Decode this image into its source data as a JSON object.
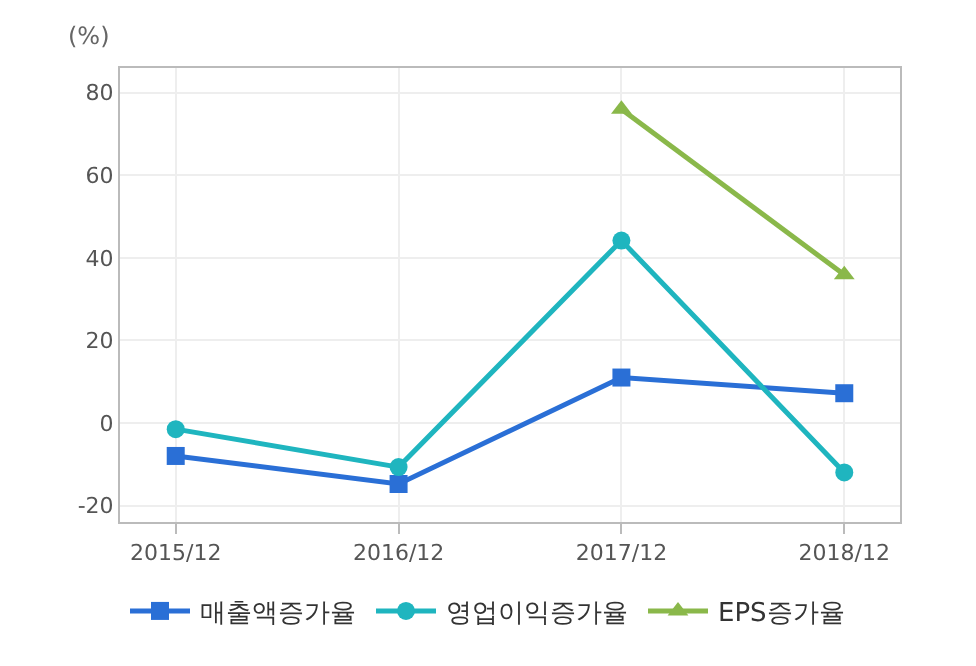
{
  "chart_data": {
    "type": "line",
    "ylabel": "(%)",
    "categories": [
      "2015/12",
      "2016/12",
      "2017/12",
      "2018/12"
    ],
    "series": [
      {
        "name": "매출액증가율",
        "color": "#2a6fd6",
        "marker": "square",
        "values": [
          -8,
          -14.8,
          11,
          7.2
        ]
      },
      {
        "name": "영업이익증가율",
        "color": "#1fb5bf",
        "marker": "circle",
        "values": [
          -1.5,
          -10.7,
          44.2,
          -12
        ]
      },
      {
        "name": "EPS증가율",
        "color": "#8ab84a",
        "marker": "triangle",
        "values": [
          null,
          null,
          76,
          35.9
        ]
      }
    ],
    "ylim": [
      -24,
      86
    ],
    "yticks": [
      -20,
      0,
      20,
      40,
      60,
      80
    ],
    "grid": true,
    "legend": "bottom",
    "line_style": "solid"
  }
}
